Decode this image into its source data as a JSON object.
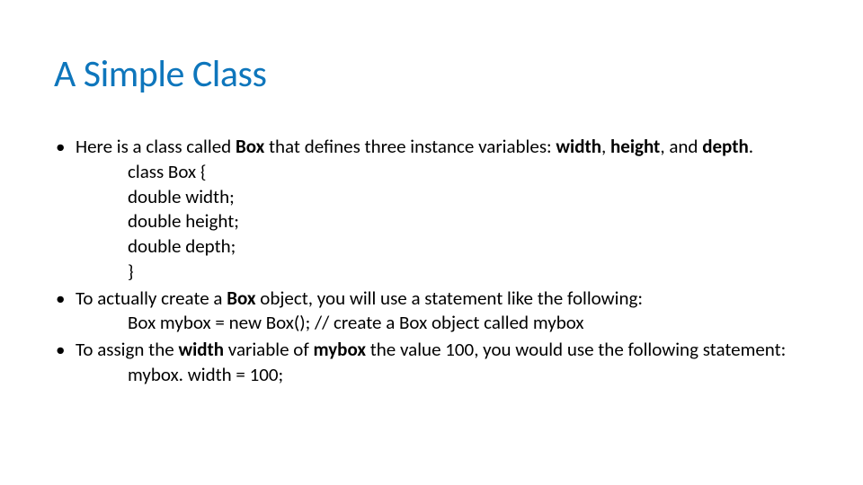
{
  "title": {
    "text": "A Simple Class",
    "color": "#0e76bc",
    "fontsize": 42,
    "fontweight": 400
  },
  "body": {
    "text_color": "#000000",
    "fontsize": 21,
    "bullets": [
      {
        "pre": "Here is a class called ",
        "b1": "Box",
        "mid1": " that defines three instance variables: ",
        "b2": "width",
        "mid2": ", ",
        "b3": "height",
        "mid3": ", and ",
        "b4": "depth",
        "post": ".",
        "code": [
          "class Box {",
          "double width;",
          "double height;",
          "double depth;",
          "}"
        ]
      },
      {
        "pre": "To actually create a ",
        "b1": "Box",
        "mid1": " object, you will use a statement like the following:",
        "b2": "",
        "mid2": "",
        "b3": "",
        "mid3": "",
        "b4": "",
        "post": "",
        "code": [
          "Box mybox = new Box(); // create a Box object called mybox"
        ]
      },
      {
        "pre": "To assign the ",
        "b1": "width",
        "mid1": " variable of ",
        "b2": "mybox",
        "mid2": " the value 100, you would use the following statement:",
        "b3": "",
        "mid3": "",
        "b4": "",
        "post": "",
        "code": [
          "mybox. width = 100;"
        ]
      }
    ]
  },
  "background_color": "#ffffff"
}
